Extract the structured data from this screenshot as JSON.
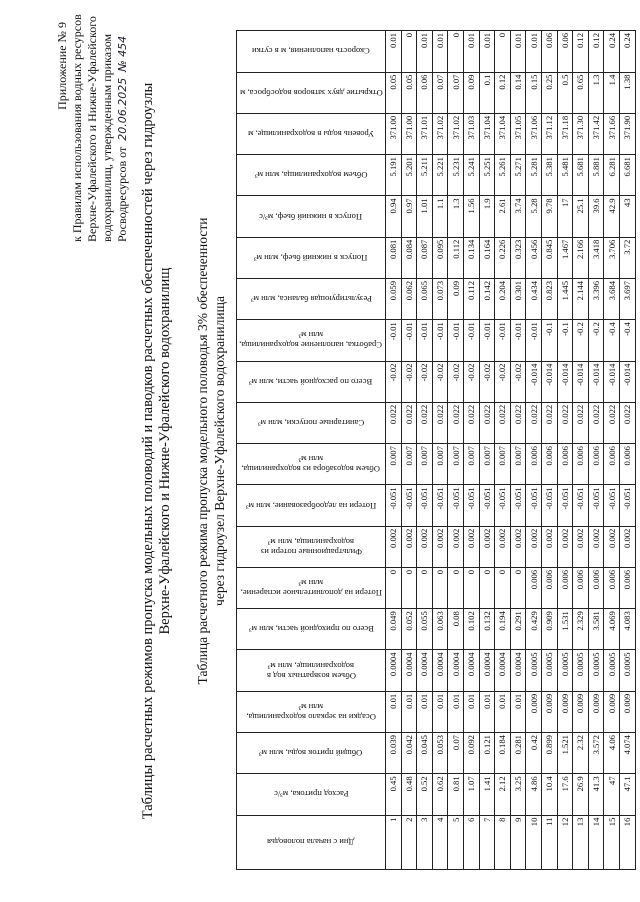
{
  "header": {
    "lines": [
      "Приложение № 9",
      "к Правилам использования водных ресурсов",
      "Верхне-Уфалейского и Нижне-Уфалейского",
      "водохранилищ, утвержденным приказом",
      "Росводресурсов от"
    ],
    "date": "20.06.2025",
    "number": "№ 454"
  },
  "title": [
    "Таблицы расчетных режимов пропуска модельных половодий и паводков расчетных обеспеченностей через гидроузлы",
    "Верхне-Уфалейского и Нижне-Уфалейского водохранилищ"
  ],
  "subtitle": [
    "Таблица расчетного режима пропуска модельного половодья 3% обеспеченности",
    "через гидроузел Верхне-Уфалейского водохранилища"
  ],
  "table": {
    "columns": [
      "Дни с начала половодья",
      "Расход притока, м³/с",
      "Общий приток воды, млн м³",
      "Осадки на зеркало водохранилища, млн м³",
      "Объем возвратных вод в водохранилище, млн м³",
      "Всего по приходной части, млн м³",
      "Потери на дополнительное испарение, млн м³",
      "Фильтрационные потери из водохранилища, млн м³",
      "Потери на ледообразование, млн м³",
      "Объем водозабора из водохранилища, млн м³",
      "Санитарные попуски, млн м³",
      "Всего по расходной части, млн м³",
      "Сработка, наполнение водохранилища, млн м³",
      "Результирующая баланса, млн м³",
      "Попуск в нижний бьеф, млн м³",
      "Попуск в нижний бьеф, м³/с",
      "Объем водохранилища, млн м³",
      "Уровень воды в водохранилище, м",
      "Открытие двух затворов водосброса, м",
      "Скорость наполнения, м в сутки"
    ],
    "rows": [
      [
        "1",
        "0.45",
        "0.039",
        "0.01",
        "0.0004",
        "0.049",
        "0",
        "0.002",
        "-0.051",
        "0.007",
        "0.022",
        "-0.02",
        "-0.01",
        "0.059",
        "0.081",
        "0.94",
        "5.191",
        "371.00",
        "0.05",
        "0.01"
      ],
      [
        "2",
        "0.48",
        "0.042",
        "0.01",
        "0.0004",
        "0.052",
        "0",
        "0.002",
        "-0.051",
        "0.007",
        "0.022",
        "-0.02",
        "-0.01",
        "0.062",
        "0.084",
        "0.97",
        "5.201",
        "371.00",
        "0.05",
        "0"
      ],
      [
        "3",
        "0.52",
        "0.045",
        "0.01",
        "0.0004",
        "0.055",
        "0",
        "0.002",
        "-0.051",
        "0.007",
        "0.022",
        "-0.02",
        "-0.01",
        "0.065",
        "0.087",
        "1.01",
        "5.211",
        "371.01",
        "0.06",
        "0.01"
      ],
      [
        "4",
        "0.62",
        "0.053",
        "0.01",
        "0.0004",
        "0.063",
        "0",
        "0.002",
        "-0.051",
        "0.007",
        "0.022",
        "-0.02",
        "-0.01",
        "0.073",
        "0.095",
        "1.1",
        "5.221",
        "371.02",
        "0.07",
        "0.01"
      ],
      [
        "5",
        "0.81",
        "0.07",
        "0.01",
        "0.0004",
        "0.08",
        "0",
        "0.002",
        "-0.051",
        "0.007",
        "0.022",
        "-0.02",
        "-0.01",
        "0.09",
        "0.112",
        "1.3",
        "5.231",
        "371.02",
        "0.07",
        "0"
      ],
      [
        "6",
        "1.07",
        "0.092",
        "0.01",
        "0.0004",
        "0.102",
        "0",
        "0.002",
        "-0.051",
        "0.007",
        "0.022",
        "-0.02",
        "-0.01",
        "0.112",
        "0.134",
        "1.56",
        "5.241",
        "371.03",
        "0.09",
        "0.01"
      ],
      [
        "7",
        "1.41",
        "0.121",
        "0.01",
        "0.0004",
        "0.132",
        "0",
        "0.002",
        "-0.051",
        "0.007",
        "0.022",
        "-0.02",
        "-0.01",
        "0.142",
        "0.164",
        "1.9",
        "5.251",
        "371.04",
        "0.1",
        "0.01"
      ],
      [
        "8",
        "2.12",
        "0.184",
        "0.01",
        "0.0004",
        "0.194",
        "0",
        "0.002",
        "-0.051",
        "0.007",
        "0.022",
        "-0.02",
        "-0.01",
        "0.204",
        "0.226",
        "2.61",
        "5.261",
        "371.04",
        "0.12",
        "0"
      ],
      [
        "9",
        "3.25",
        "0.281",
        "0.01",
        "0.0004",
        "0.291",
        "0",
        "0.002",
        "-0.051",
        "0.007",
        "0.022",
        "-0.02",
        "-0.01",
        "0.301",
        "0.323",
        "3.74",
        "5.271",
        "371.05",
        "0.14",
        "0.01"
      ],
      [
        "10",
        "4.86",
        "0.42",
        "0.009",
        "0.0005",
        "0.429",
        "0.006",
        "0.002",
        "-0.051",
        "0.006",
        "0.022",
        "-0.014",
        "-0.01",
        "0.434",
        "0.456",
        "5.28",
        "5.281",
        "371.06",
        "0.15",
        "0.01"
      ],
      [
        "11",
        "10.4",
        "0.899",
        "0.009",
        "0.0005",
        "0.909",
        "0.006",
        "0.002",
        "-0.051",
        "0.006",
        "0.022",
        "-0.014",
        "-0.1",
        "0.823",
        "0.845",
        "9.78",
        "5.381",
        "371.12",
        "0.25",
        "0.06"
      ],
      [
        "12",
        "17.6",
        "1.521",
        "0.009",
        "0.0005",
        "1.531",
        "0.006",
        "0.002",
        "-0.051",
        "0.006",
        "0.022",
        "-0.014",
        "-0.1",
        "1.445",
        "1.467",
        "17",
        "5.481",
        "371.18",
        "0.5",
        "0.06"
      ],
      [
        "13",
        "26.9",
        "2.32",
        "0.009",
        "0.0005",
        "2.329",
        "0.006",
        "0.002",
        "-0.051",
        "0.006",
        "0.022",
        "-0.014",
        "-0.2",
        "2.144",
        "2.166",
        "25.1",
        "5.681",
        "371.30",
        "0.65",
        "0.12"
      ],
      [
        "14",
        "41.3",
        "3.572",
        "0.009",
        "0.0005",
        "3.581",
        "0.006",
        "0.002",
        "-0.051",
        "0.006",
        "0.022",
        "-0.014",
        "-0.2",
        "3.396",
        "3.418",
        "39.6",
        "5.881",
        "371.42",
        "1.3",
        "0.12"
      ],
      [
        "15",
        "47",
        "4.06",
        "0.009",
        "0.0005",
        "4.069",
        "0.006",
        "0.002",
        "-0.051",
        "0.006",
        "0.022",
        "-0.014",
        "-0.4",
        "3.684",
        "3.706",
        "42.9",
        "6.281",
        "371.66",
        "1.4",
        "0.24"
      ],
      [
        "16",
        "47.1",
        "4.074",
        "0.009",
        "0.0005",
        "4.083",
        "0.006",
        "0.002",
        "-0.051",
        "0.006",
        "0.022",
        "-0.014",
        "-0.4",
        "3.697",
        "3.72",
        "43",
        "6.681",
        "371.90",
        "1.38",
        "0.24"
      ]
    ]
  }
}
